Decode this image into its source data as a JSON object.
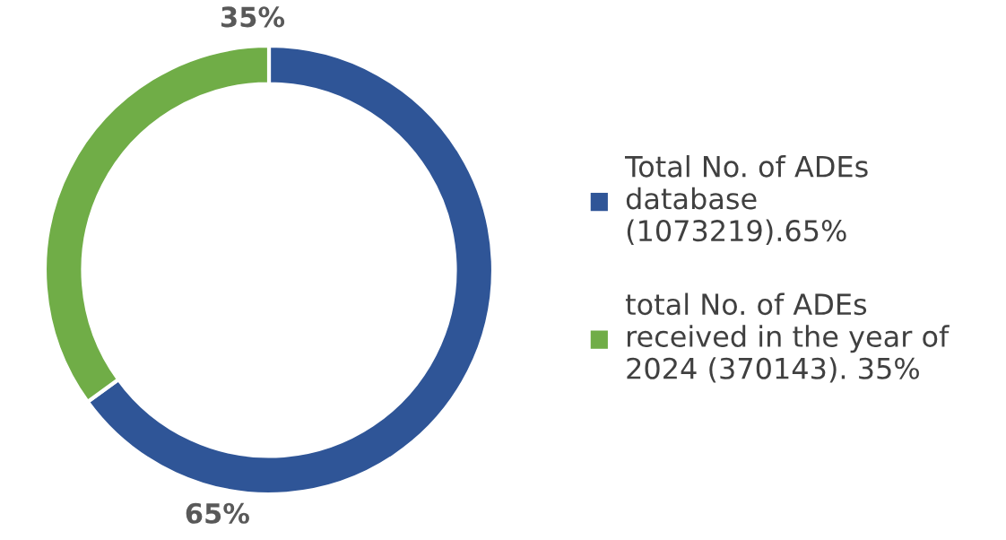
{
  "chart_data": {
    "type": "donut",
    "categories": [
      "Total No. of ADEs\ndatabase\n(1073219).65%",
      "total No. of ADEs\nreceived in the year of\n2024 (370143). 35%"
    ],
    "values": [
      65,
      35
    ],
    "colors": [
      "#2f5597",
      "#70ad47"
    ],
    "value_labels": [
      "65%",
      "35%"
    ],
    "legend": "right"
  }
}
